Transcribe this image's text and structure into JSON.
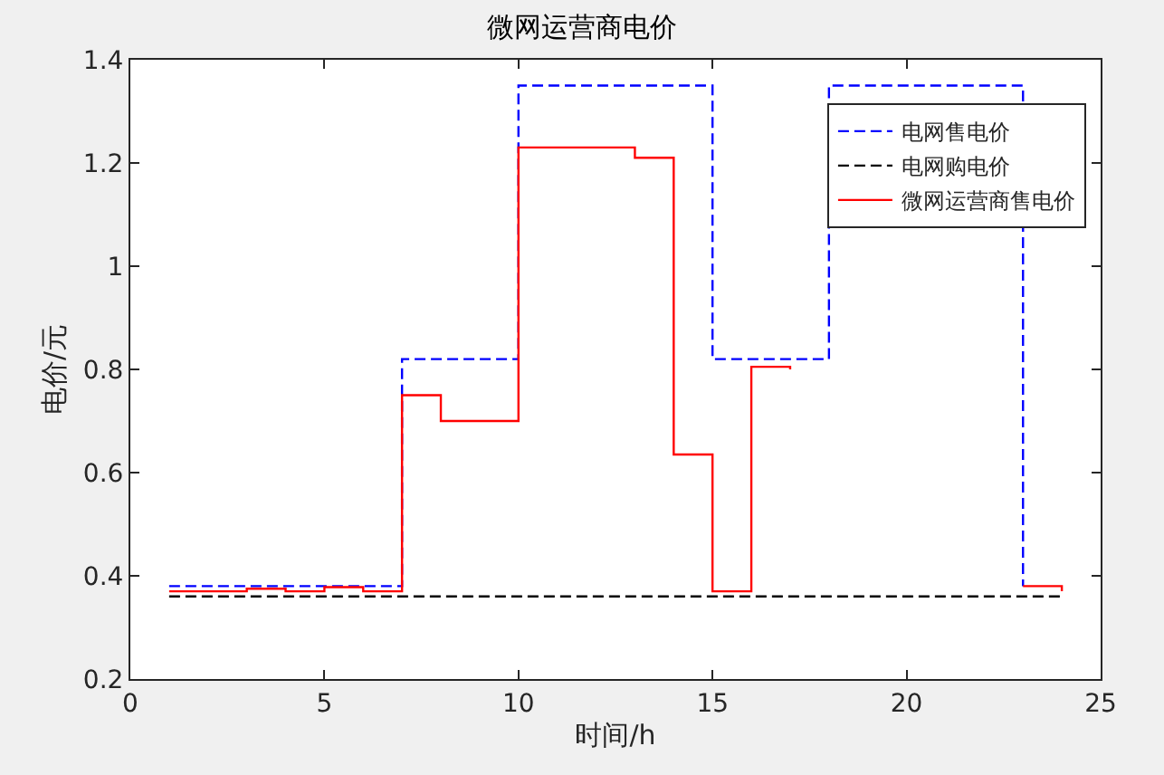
{
  "chart_data": {
    "type": "step",
    "title": "微网运营商电价",
    "xlabel": "时间/h",
    "ylabel": "电价/元",
    "x": [
      1,
      2,
      3,
      4,
      5,
      6,
      7,
      8,
      9,
      10,
      11,
      12,
      13,
      14,
      15,
      16,
      17,
      18,
      19,
      20,
      21,
      22,
      23,
      24
    ],
    "series": [
      {
        "name": "电网售电价",
        "color": "#0000ff",
        "line_style": "dashed",
        "values": [
          0.38,
          0.38,
          0.38,
          0.38,
          0.38,
          0.38,
          0.82,
          0.82,
          0.82,
          1.35,
          1.35,
          1.35,
          1.35,
          1.35,
          0.82,
          0.82,
          0.82,
          1.35,
          1.35,
          1.35,
          1.35,
          1.35,
          0.38,
          null
        ]
      },
      {
        "name": "电网购电价",
        "color": "#000000",
        "line_style": "dashed",
        "values": [
          0.36,
          0.36,
          0.36,
          0.36,
          0.36,
          0.36,
          0.36,
          0.36,
          0.36,
          0.36,
          0.36,
          0.36,
          0.36,
          0.36,
          0.36,
          0.36,
          0.36,
          0.36,
          0.36,
          0.36,
          0.36,
          0.36,
          0.36,
          0.36
        ]
      },
      {
        "name": "微网运营商售电价",
        "color": "#ff0000",
        "line_style": "solid",
        "values": [
          0.37,
          0.37,
          0.375,
          0.37,
          0.378,
          0.37,
          0.75,
          0.7,
          0.7,
          1.23,
          1.23,
          1.23,
          1.21,
          0.635,
          0.37,
          0.805,
          0.8,
          null,
          null,
          null,
          null,
          null,
          0.38,
          0.37
        ]
      }
    ],
    "xlim": [
      0,
      25
    ],
    "xticks": [
      0,
      5,
      10,
      15,
      20,
      25
    ],
    "ylim": [
      0.2,
      1.4
    ],
    "yticks": [
      0.2,
      0.4,
      0.6,
      0.8,
      1,
      1.2,
      1.4
    ],
    "legend": "top right"
  }
}
